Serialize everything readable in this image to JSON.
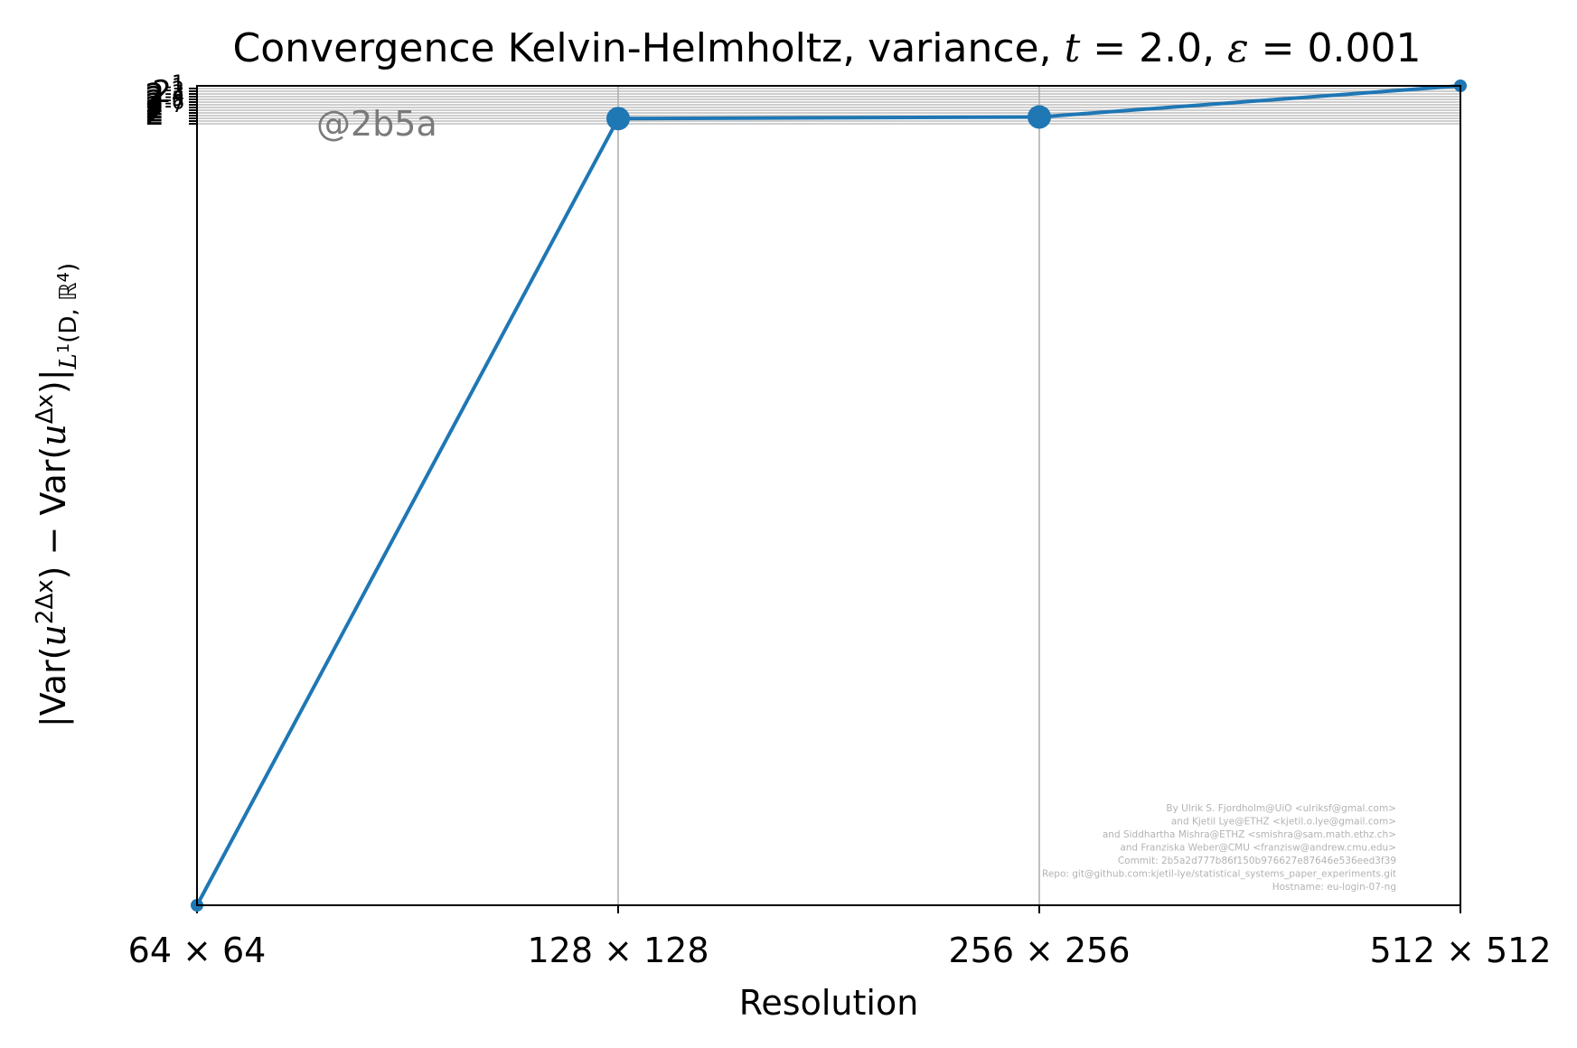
{
  "chart_data": {
    "type": "line",
    "title": "Convergence Kelvin-Helmholtz, variance, t = 2.0, ε = 0.001",
    "title_parts": {
      "prefix": "Convergence Kelvin-Helmholtz, variance, ",
      "t_symbol": "t",
      "t_value": " = 2.0, ",
      "eps_symbol": "ε",
      "eps_value": " = 0.001"
    },
    "xlabel": "Resolution",
    "ylabel": "|Var(u^{2Δx}) − Var(u^{Δx})|_{L¹(D, ℝ⁴)}",
    "ylabel_parts": {
      "a": "|Var(",
      "b": "u",
      "c": "2Δx",
      "d": ") − Var(",
      "e": "u",
      "f": "Δx",
      "g": ")|",
      "h": "L",
      "i": "1",
      "j": "(D, ",
      "k": "ℝ",
      "l": "4",
      "m": ")"
    },
    "x_scale": "log2",
    "categories": [
      "64 × 64",
      "128 × 128",
      "256 × 256",
      "512 × 512"
    ],
    "x": [
      64,
      128,
      256,
      512
    ],
    "series": [
      {
        "values": [
          0.0,
          0.96,
          0.962,
          1.0
        ],
        "color": "#1f77b4"
      }
    ],
    "marker_sizes": [
      "small",
      "large",
      "large",
      "small"
    ],
    "ylim": [
      0.0,
      1.0
    ],
    "y_scale": "log2 (tick labels overlapping near top)",
    "y_tick_labels_visible": [
      "2^1",
      "2^-1",
      "2^-2",
      "2^-3",
      "2^-4",
      "2^-5",
      "2^-6",
      "2^-7"
    ],
    "grid": true,
    "annotation_stamp": "@2b5a",
    "credits": [
      "By Ulrik S. Fjordholm@UiO <ulriksf@gmal.com>",
      "and Kjetil Lye@ETHZ <kjetil.o.lye@gmail.com>",
      "and Siddhartha Mishra@ETHZ <smishra@sam.math.ethz.ch>",
      "and Franziska Weber@CMU <franzisw@andrew.cmu.edu>",
      "Commit: 2b5a2d777b86f150b976627e87646e536eed3f39",
      "Repo: git@github.com:kjetil-lye/statistical_systems_paper_experiments.git",
      "Hostname: eu-login-07-ng"
    ]
  }
}
